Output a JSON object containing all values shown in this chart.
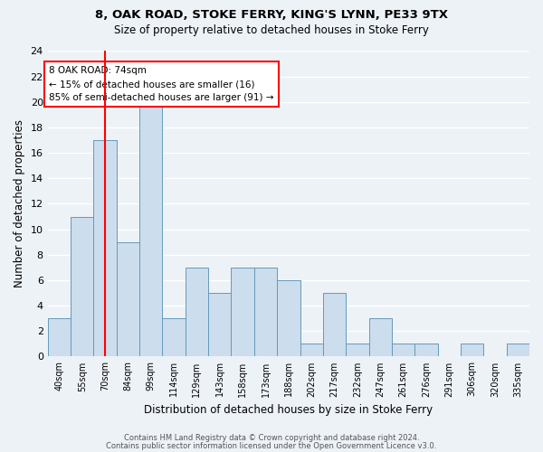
{
  "title1": "8, OAK ROAD, STOKE FERRY, KING'S LYNN, PE33 9TX",
  "title2": "Size of property relative to detached houses in Stoke Ferry",
  "xlabel": "Distribution of detached houses by size in Stoke Ferry",
  "ylabel": "Number of detached properties",
  "bar_color": "#ccdded",
  "bar_edge_color": "#6699bb",
  "categories": [
    "40sqm",
    "55sqm",
    "70sqm",
    "84sqm",
    "99sqm",
    "114sqm",
    "129sqm",
    "143sqm",
    "158sqm",
    "173sqm",
    "188sqm",
    "202sqm",
    "217sqm",
    "232sqm",
    "247sqm",
    "261sqm",
    "276sqm",
    "291sqm",
    "306sqm",
    "320sqm",
    "335sqm"
  ],
  "values": [
    3,
    11,
    17,
    9,
    20,
    3,
    7,
    5,
    7,
    7,
    6,
    1,
    5,
    1,
    3,
    1,
    1,
    0,
    1,
    0,
    1
  ],
  "ylim": [
    0,
    24
  ],
  "yticks": [
    0,
    2,
    4,
    6,
    8,
    10,
    12,
    14,
    16,
    18,
    20,
    22,
    24
  ],
  "red_line_x": 2.0,
  "annotation_line1": "8 OAK ROAD: 74sqm",
  "annotation_line2": "← 15% of detached houses are smaller (16)",
  "annotation_line3": "85% of semi-detached houses are larger (91) →",
  "footer1": "Contains HM Land Registry data © Crown copyright and database right 2024.",
  "footer2": "Contains public sector information licensed under the Open Government Licence v3.0.",
  "background_color": "#edf2f7",
  "grid_color": "#ffffff"
}
